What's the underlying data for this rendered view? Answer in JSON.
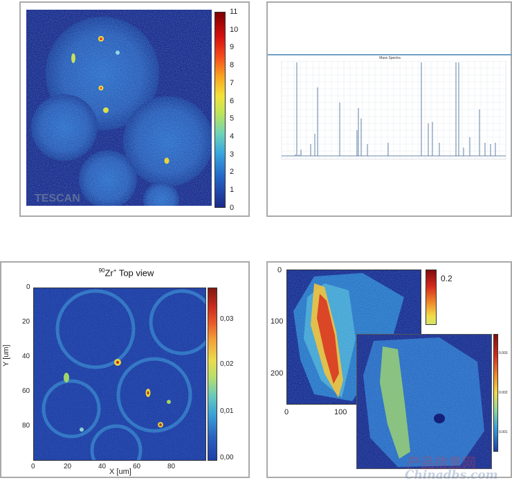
{
  "panels": {
    "sem_map": {
      "logo_text": "TESCAN",
      "colorbar_ticks": [
        "11",
        "10",
        "9",
        "8",
        "7",
        "6",
        "5",
        "4",
        "3",
        "2",
        "1",
        "0"
      ]
    },
    "mass_spectra": {
      "title": "Mass Spectra"
    },
    "zr_top_view": {
      "title_sup": "90",
      "title_main": "Zr",
      "title_charge": "+",
      "title_rest": " Top view",
      "ylabel": "Y [um]",
      "xlabel": "X [um]",
      "y_ticks": [
        "0",
        "20",
        "40",
        "60",
        "80"
      ],
      "x_ticks": [
        "0",
        "20",
        "40",
        "60",
        "80"
      ],
      "colorbar_ticks": [
        "0,03",
        "0,02",
        "0,01",
        "0,00"
      ]
    },
    "overlay_map": {
      "colorbar_top": "0.2",
      "y_ticks": [
        "0",
        "100",
        "200"
      ],
      "x_ticks": [
        "0",
        "100"
      ],
      "inset_colorbar_ticks": [
        "0.003",
        "0.002",
        "0.001"
      ]
    }
  },
  "watermark": {
    "line1": "产品信息网",
    "line2": "Chinadbs.com"
  }
}
